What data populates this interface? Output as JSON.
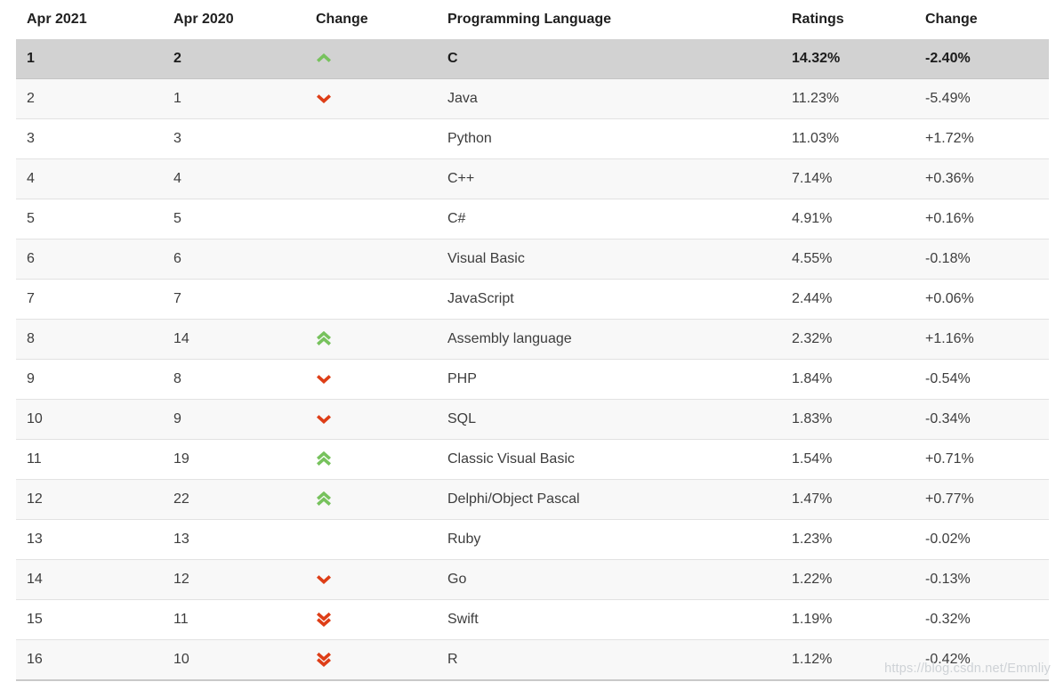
{
  "colors": {
    "up_arrow": "#77c25d",
    "down_arrow": "#de3e17",
    "highlight_row_bg": "#d2d2d2",
    "even_row_bg": "#f8f8f8",
    "row_border": "#e2e2e2",
    "table_bottom_border": "#c9c9c9",
    "watermark_text": "#ced2d6"
  },
  "watermark": "https://blog.csdn.net/Emmliy",
  "table": {
    "headers": [
      "Apr 2021",
      "Apr 2020",
      "Change",
      "Programming Language",
      "Ratings",
      "Change"
    ],
    "rows": [
      {
        "rank_2021": "1",
        "rank_2020": "2",
        "direction": "up",
        "language": "C",
        "ratings": "14.32%",
        "change": "-2.40%",
        "highlighted": true
      },
      {
        "rank_2021": "2",
        "rank_2020": "1",
        "direction": "down",
        "language": "Java",
        "ratings": "11.23%",
        "change": "-5.49%",
        "highlighted": false
      },
      {
        "rank_2021": "3",
        "rank_2020": "3",
        "direction": "",
        "language": "Python",
        "ratings": "11.03%",
        "change": "+1.72%",
        "highlighted": false
      },
      {
        "rank_2021": "4",
        "rank_2020": "4",
        "direction": "",
        "language": "C++",
        "ratings": "7.14%",
        "change": "+0.36%",
        "highlighted": false
      },
      {
        "rank_2021": "5",
        "rank_2020": "5",
        "direction": "",
        "language": "C#",
        "ratings": "4.91%",
        "change": "+0.16%",
        "highlighted": false
      },
      {
        "rank_2021": "6",
        "rank_2020": "6",
        "direction": "",
        "language": "Visual Basic",
        "ratings": "4.55%",
        "change": "-0.18%",
        "highlighted": false
      },
      {
        "rank_2021": "7",
        "rank_2020": "7",
        "direction": "",
        "language": "JavaScript",
        "ratings": "2.44%",
        "change": "+0.06%",
        "highlighted": false
      },
      {
        "rank_2021": "8",
        "rank_2020": "14",
        "direction": "up2",
        "language": "Assembly language",
        "ratings": "2.32%",
        "change": "+1.16%",
        "highlighted": false
      },
      {
        "rank_2021": "9",
        "rank_2020": "8",
        "direction": "down",
        "language": "PHP",
        "ratings": "1.84%",
        "change": "-0.54%",
        "highlighted": false
      },
      {
        "rank_2021": "10",
        "rank_2020": "9",
        "direction": "down",
        "language": "SQL",
        "ratings": "1.83%",
        "change": "-0.34%",
        "highlighted": false
      },
      {
        "rank_2021": "11",
        "rank_2020": "19",
        "direction": "up2",
        "language": "Classic Visual Basic",
        "ratings": "1.54%",
        "change": "+0.71%",
        "highlighted": false
      },
      {
        "rank_2021": "12",
        "rank_2020": "22",
        "direction": "up2",
        "language": "Delphi/Object Pascal",
        "ratings": "1.47%",
        "change": "+0.77%",
        "highlighted": false
      },
      {
        "rank_2021": "13",
        "rank_2020": "13",
        "direction": "",
        "language": "Ruby",
        "ratings": "1.23%",
        "change": "-0.02%",
        "highlighted": false
      },
      {
        "rank_2021": "14",
        "rank_2020": "12",
        "direction": "down",
        "language": "Go",
        "ratings": "1.22%",
        "change": "-0.13%",
        "highlighted": false
      },
      {
        "rank_2021": "15",
        "rank_2020": "11",
        "direction": "down2",
        "language": "Swift",
        "ratings": "1.19%",
        "change": "-0.32%",
        "highlighted": false
      },
      {
        "rank_2021": "16",
        "rank_2020": "10",
        "direction": "down2",
        "language": "R",
        "ratings": "1.12%",
        "change": "-0.42%",
        "highlighted": false
      }
    ]
  },
  "chart_data": {
    "type": "table",
    "title": "TIOBE Index ranking table (Apr 2021 vs Apr 2020)",
    "columns": [
      "Apr 2021",
      "Apr 2020",
      "Change",
      "Programming Language",
      "Ratings",
      "Change"
    ],
    "rows": [
      [
        "1",
        "2",
        "up",
        "C",
        "14.32%",
        "-2.40%"
      ],
      [
        "2",
        "1",
        "down",
        "Java",
        "11.23%",
        "-5.49%"
      ],
      [
        "3",
        "3",
        "",
        "Python",
        "11.03%",
        "+1.72%"
      ],
      [
        "4",
        "4",
        "",
        "C++",
        "7.14%",
        "+0.36%"
      ],
      [
        "5",
        "5",
        "",
        "C#",
        "4.91%",
        "+0.16%"
      ],
      [
        "6",
        "6",
        "",
        "Visual Basic",
        "4.55%",
        "-0.18%"
      ],
      [
        "7",
        "7",
        "",
        "JavaScript",
        "2.44%",
        "+0.06%"
      ],
      [
        "8",
        "14",
        "up2",
        "Assembly language",
        "2.32%",
        "+1.16%"
      ],
      [
        "9",
        "8",
        "down",
        "PHP",
        "1.84%",
        "-0.54%"
      ],
      [
        "10",
        "9",
        "down",
        "SQL",
        "1.83%",
        "-0.34%"
      ],
      [
        "11",
        "19",
        "up2",
        "Classic Visual Basic",
        "1.54%",
        "+0.71%"
      ],
      [
        "12",
        "22",
        "up2",
        "Delphi/Object Pascal",
        "1.47%",
        "+0.77%"
      ],
      [
        "13",
        "13",
        "",
        "Ruby",
        "1.23%",
        "-0.02%"
      ],
      [
        "14",
        "12",
        "down",
        "Go",
        "1.22%",
        "-0.13%"
      ],
      [
        "15",
        "11",
        "down2",
        "Swift",
        "1.19%",
        "-0.32%"
      ],
      [
        "16",
        "10",
        "down2",
        "R",
        "1.12%",
        "-0.42%"
      ]
    ],
    "notes": "Row 1 (C) rendered highlighted/selected with gray background and bold text. 'up'/'down' = single chevron, 'up2'/'down2' = double chevron."
  }
}
